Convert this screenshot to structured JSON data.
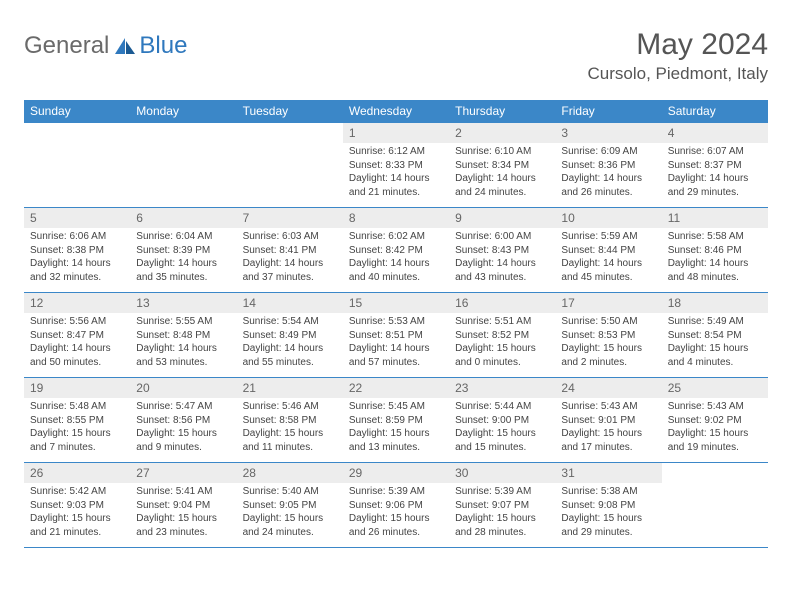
{
  "brand": {
    "general": "General",
    "blue": "Blue"
  },
  "title": "May 2024",
  "location": "Cursolo, Piedmont, Italy",
  "colors": {
    "header_bg": "#3b87c8",
    "header_text": "#ffffff",
    "daynum_bg": "#ededed",
    "border": "#3b87c8",
    "logo_gray": "#6a6a6a",
    "logo_blue": "#2f78bd"
  },
  "weekdays": [
    "Sunday",
    "Monday",
    "Tuesday",
    "Wednesday",
    "Thursday",
    "Friday",
    "Saturday"
  ],
  "weeks": [
    [
      null,
      null,
      null,
      {
        "n": "1",
        "sunrise": "6:12 AM",
        "sunset": "8:33 PM",
        "daylight": "14 hours and 21 minutes."
      },
      {
        "n": "2",
        "sunrise": "6:10 AM",
        "sunset": "8:34 PM",
        "daylight": "14 hours and 24 minutes."
      },
      {
        "n": "3",
        "sunrise": "6:09 AM",
        "sunset": "8:36 PM",
        "daylight": "14 hours and 26 minutes."
      },
      {
        "n": "4",
        "sunrise": "6:07 AM",
        "sunset": "8:37 PM",
        "daylight": "14 hours and 29 minutes."
      }
    ],
    [
      {
        "n": "5",
        "sunrise": "6:06 AM",
        "sunset": "8:38 PM",
        "daylight": "14 hours and 32 minutes."
      },
      {
        "n": "6",
        "sunrise": "6:04 AM",
        "sunset": "8:39 PM",
        "daylight": "14 hours and 35 minutes."
      },
      {
        "n": "7",
        "sunrise": "6:03 AM",
        "sunset": "8:41 PM",
        "daylight": "14 hours and 37 minutes."
      },
      {
        "n": "8",
        "sunrise": "6:02 AM",
        "sunset": "8:42 PM",
        "daylight": "14 hours and 40 minutes."
      },
      {
        "n": "9",
        "sunrise": "6:00 AM",
        "sunset": "8:43 PM",
        "daylight": "14 hours and 43 minutes."
      },
      {
        "n": "10",
        "sunrise": "5:59 AM",
        "sunset": "8:44 PM",
        "daylight": "14 hours and 45 minutes."
      },
      {
        "n": "11",
        "sunrise": "5:58 AM",
        "sunset": "8:46 PM",
        "daylight": "14 hours and 48 minutes."
      }
    ],
    [
      {
        "n": "12",
        "sunrise": "5:56 AM",
        "sunset": "8:47 PM",
        "daylight": "14 hours and 50 minutes."
      },
      {
        "n": "13",
        "sunrise": "5:55 AM",
        "sunset": "8:48 PM",
        "daylight": "14 hours and 53 minutes."
      },
      {
        "n": "14",
        "sunrise": "5:54 AM",
        "sunset": "8:49 PM",
        "daylight": "14 hours and 55 minutes."
      },
      {
        "n": "15",
        "sunrise": "5:53 AM",
        "sunset": "8:51 PM",
        "daylight": "14 hours and 57 minutes."
      },
      {
        "n": "16",
        "sunrise": "5:51 AM",
        "sunset": "8:52 PM",
        "daylight": "15 hours and 0 minutes."
      },
      {
        "n": "17",
        "sunrise": "5:50 AM",
        "sunset": "8:53 PM",
        "daylight": "15 hours and 2 minutes."
      },
      {
        "n": "18",
        "sunrise": "5:49 AM",
        "sunset": "8:54 PM",
        "daylight": "15 hours and 4 minutes."
      }
    ],
    [
      {
        "n": "19",
        "sunrise": "5:48 AM",
        "sunset": "8:55 PM",
        "daylight": "15 hours and 7 minutes."
      },
      {
        "n": "20",
        "sunrise": "5:47 AM",
        "sunset": "8:56 PM",
        "daylight": "15 hours and 9 minutes."
      },
      {
        "n": "21",
        "sunrise": "5:46 AM",
        "sunset": "8:58 PM",
        "daylight": "15 hours and 11 minutes."
      },
      {
        "n": "22",
        "sunrise": "5:45 AM",
        "sunset": "8:59 PM",
        "daylight": "15 hours and 13 minutes."
      },
      {
        "n": "23",
        "sunrise": "5:44 AM",
        "sunset": "9:00 PM",
        "daylight": "15 hours and 15 minutes."
      },
      {
        "n": "24",
        "sunrise": "5:43 AM",
        "sunset": "9:01 PM",
        "daylight": "15 hours and 17 minutes."
      },
      {
        "n": "25",
        "sunrise": "5:43 AM",
        "sunset": "9:02 PM",
        "daylight": "15 hours and 19 minutes."
      }
    ],
    [
      {
        "n": "26",
        "sunrise": "5:42 AM",
        "sunset": "9:03 PM",
        "daylight": "15 hours and 21 minutes."
      },
      {
        "n": "27",
        "sunrise": "5:41 AM",
        "sunset": "9:04 PM",
        "daylight": "15 hours and 23 minutes."
      },
      {
        "n": "28",
        "sunrise": "5:40 AM",
        "sunset": "9:05 PM",
        "daylight": "15 hours and 24 minutes."
      },
      {
        "n": "29",
        "sunrise": "5:39 AM",
        "sunset": "9:06 PM",
        "daylight": "15 hours and 26 minutes."
      },
      {
        "n": "30",
        "sunrise": "5:39 AM",
        "sunset": "9:07 PM",
        "daylight": "15 hours and 28 minutes."
      },
      {
        "n": "31",
        "sunrise": "5:38 AM",
        "sunset": "9:08 PM",
        "daylight": "15 hours and 29 minutes."
      },
      null
    ]
  ],
  "labels": {
    "sunrise": "Sunrise:",
    "sunset": "Sunset:",
    "daylight": "Daylight:"
  }
}
